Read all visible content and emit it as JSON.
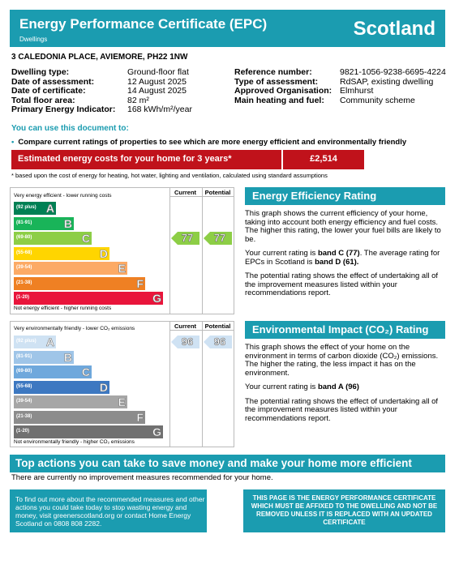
{
  "header": {
    "title": "Energy Performance Certificate (EPC)",
    "subtitle": "Dwellings",
    "country": "Scotland"
  },
  "address": "3 CALEDONIA PLACE, AVIEMORE, PH22 1NW",
  "details_left": [
    {
      "label": "Dwelling type:",
      "value": "Ground-floor flat"
    },
    {
      "label": "Date of assessment:",
      "value": "12 August 2025"
    },
    {
      "label": "Date of certificate:",
      "value": "14 August 2025"
    },
    {
      "label": "Total floor area:",
      "value": "82 m²"
    },
    {
      "label": "Primary Energy Indicator:",
      "value": "168 kWh/m²/year"
    }
  ],
  "details_right": [
    {
      "label": "Reference number:",
      "value": "9821-1056-9238-6695-4224"
    },
    {
      "label": "Type of assessment:",
      "value": "RdSAP, existing dwelling"
    },
    {
      "label": "Approved Organisation:",
      "value": "Elmhurst"
    },
    {
      "label": "Main heating and fuel:",
      "value": "Community scheme"
    }
  ],
  "usage": {
    "heading": "You can use this document to:",
    "bullet_symbol": "•",
    "bullet": "Compare current ratings of properties to see which are more energy efficient and environmentally friendly"
  },
  "cost": {
    "label": "Estimated energy costs for your home for 3 years*",
    "value": "£2,514",
    "note": "* based upon the cost of energy for heating, hot water, lighting and ventilation, calculated using standard assumptions"
  },
  "efficiency_chart": {
    "col_current": "Current",
    "col_potential": "Potential",
    "top_text": "Very energy efficient - lower running costs",
    "bottom_text": "Not energy efficient - higher running costs",
    "current": "77",
    "potential": "77",
    "current_band_index": 2,
    "potential_band_index": 2,
    "bands": [
      {
        "range": "(92 plus)",
        "letter": "A",
        "color": "#008054"
      },
      {
        "range": "(81-91)",
        "letter": "B",
        "color": "#19b459"
      },
      {
        "range": "(69-80)",
        "letter": "C",
        "color": "#8dce46"
      },
      {
        "range": "(55-68)",
        "letter": "D",
        "color": "#ffd500"
      },
      {
        "range": "(39-54)",
        "letter": "E",
        "color": "#fcaa65"
      },
      {
        "range": "(21-38)",
        "letter": "F",
        "color": "#ef8023"
      },
      {
        "range": "(1-20)",
        "letter": "G",
        "color": "#e9153b"
      }
    ],
    "arrow_color": "#8dce46"
  },
  "environment_chart": {
    "col_current": "Current",
    "col_potential": "Potential",
    "top_text": "Very environmentally friendly - lower CO₂ emissions",
    "bottom_text": "Not environmentally friendly - higher CO₂ emissions",
    "current": "96",
    "potential": "96",
    "current_band_index": 0,
    "potential_band_index": 0,
    "bands": [
      {
        "range": "(92 plus)",
        "letter": "A",
        "color": "#cfe2f3"
      },
      {
        "range": "(81-91)",
        "letter": "B",
        "color": "#9fc5e8"
      },
      {
        "range": "(69-80)",
        "letter": "C",
        "color": "#6fa8dc"
      },
      {
        "range": "(55-68)",
        "letter": "D",
        "color": "#3d78c1"
      },
      {
        "range": "(39-54)",
        "letter": "E",
        "color": "#a6a6a6"
      },
      {
        "range": "(21-38)",
        "letter": "F",
        "color": "#8c8c8c"
      },
      {
        "range": "(1-20)",
        "letter": "G",
        "color": "#707070"
      }
    ],
    "arrow_color": "#cfe2f3"
  },
  "efficiency_panel": {
    "title": "Energy Efficiency Rating",
    "p1": "This graph shows the current efficiency of your home, taking into account both energy efficiency and fuel costs. The higher this rating, the lower your fuel bills are likely to be.",
    "p2_a": "Your current rating is ",
    "p2_b": "band C (77)",
    "p2_c": ". The average rating for EPCs in Scotland is ",
    "p2_d": "band D (61).",
    "p3": "The potential rating shows the effect of undertaking all of the improvement measures listed within your recommendations report."
  },
  "environment_panel": {
    "title": "Environmental Impact (CO₂) Rating",
    "p1": "This graph shows the effect of your home on the environment in terms of carbon dioxide (CO₂) emissions. The higher the rating, the less impact it has on the environment.",
    "p2_a": "Your current rating is ",
    "p2_b": "band A (96)",
    "p3": "The potential rating shows the effect of undertaking all of the improvement measures listed within your recommendations report."
  },
  "actions": {
    "title": "Top actions you can take to save money and make your home more efficient",
    "text": "There are currently no improvement measures recommended for your home."
  },
  "info_box": "To find out more about the recommended measures and other actions you could take today to stop wasting energy and money, visit greenerscotland.org or contact Home Energy Scotland on 0808 808 2282.",
  "notice_box": "THIS PAGE IS THE ENERGY PERFORMANCE CERTIFICATE WHICH MUST BE AFFIXED TO THE DWELLING AND NOT BE REMOVED UNLESS IT IS REPLACED WITH AN UPDATED CERTIFICATE"
}
